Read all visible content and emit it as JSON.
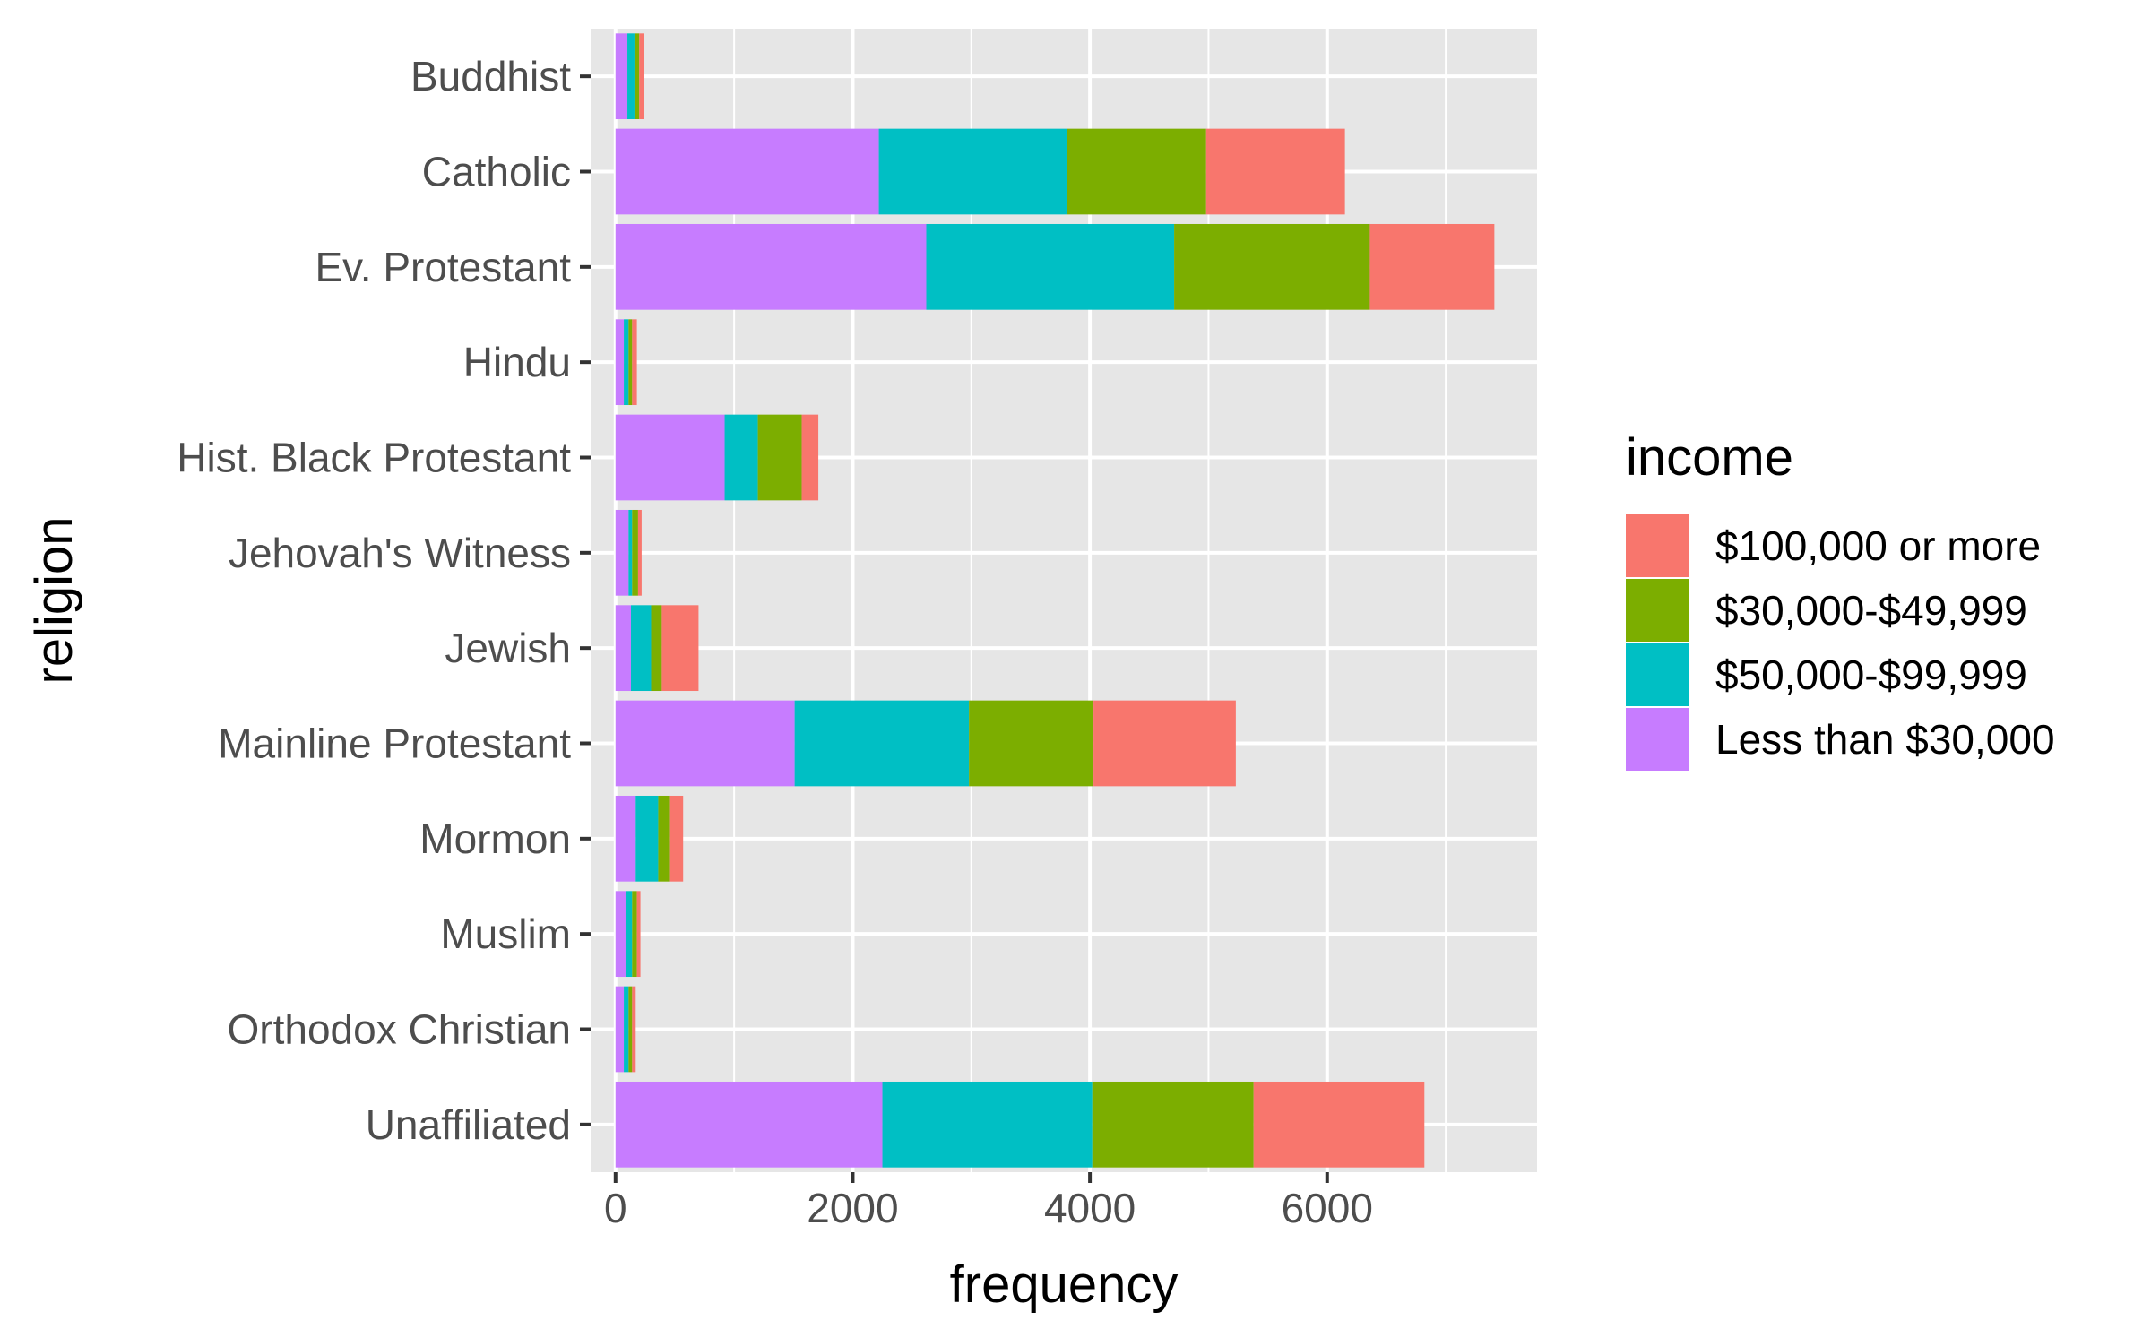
{
  "chart_data": {
    "type": "bar",
    "orientation": "horizontal",
    "stacked": true,
    "title": "",
    "xlabel": "frequency",
    "ylabel": "religion",
    "xlim": [
      -210,
      7770
    ],
    "x_ticks": [
      0,
      2000,
      4000,
      6000
    ],
    "x_tick_labels": [
      "0",
      "2000",
      "4000",
      "6000"
    ],
    "x_minor_ticks": [
      1000,
      3000,
      5000,
      7000
    ],
    "grid": true,
    "legend_position": "right",
    "categories": [
      "Buddhist",
      "Catholic",
      "Ev. Protestant",
      "Hindu",
      "Hist. Black Protestant",
      "Jehovah's Witness",
      "Jewish",
      "Mainline Protestant",
      "Mormon",
      "Muslim",
      "Orthodox Christian",
      "Unaffiliated"
    ],
    "stack_order": [
      "Less than $30,000",
      "$50,000-$99,999",
      "$30,000-$49,999",
      "$100,000 or more"
    ],
    "series": [
      {
        "name": "Less than $30,000",
        "color": "#C77CFF",
        "values": [
          100,
          2220,
          2620,
          70,
          920,
          110,
          130,
          1510,
          170,
          90,
          70,
          2250
        ]
      },
      {
        "name": "$50,000-$99,999",
        "color": "#00BFC4",
        "values": [
          60,
          1590,
          2090,
          40,
          280,
          30,
          170,
          1470,
          190,
          50,
          40,
          1770
        ]
      },
      {
        "name": "$30,000-$49,999",
        "color": "#7CAE00",
        "values": [
          40,
          1170,
          1650,
          30,
          370,
          50,
          90,
          1050,
          100,
          40,
          30,
          1360
        ]
      },
      {
        "name": "$100,000 or more",
        "color": "#F8766D",
        "values": [
          40,
          1170,
          1050,
          40,
          140,
          30,
          310,
          1200,
          110,
          30,
          30,
          1440
        ]
      }
    ],
    "legend": {
      "title": "income",
      "entries": [
        {
          "label": "$100,000 or more",
          "color": "#F8766D"
        },
        {
          "label": "$30,000-$49,999",
          "color": "#7CAE00"
        },
        {
          "label": "$50,000-$99,999",
          "color": "#00BFC4"
        },
        {
          "label": "Less than $30,000",
          "color": "#C77CFF"
        }
      ]
    },
    "colors": {
      "panel_background": "#E6E6E6",
      "grid": "#FFFFFF",
      "tick_text": "#4D4D4D",
      "title_text": "#000000"
    }
  }
}
